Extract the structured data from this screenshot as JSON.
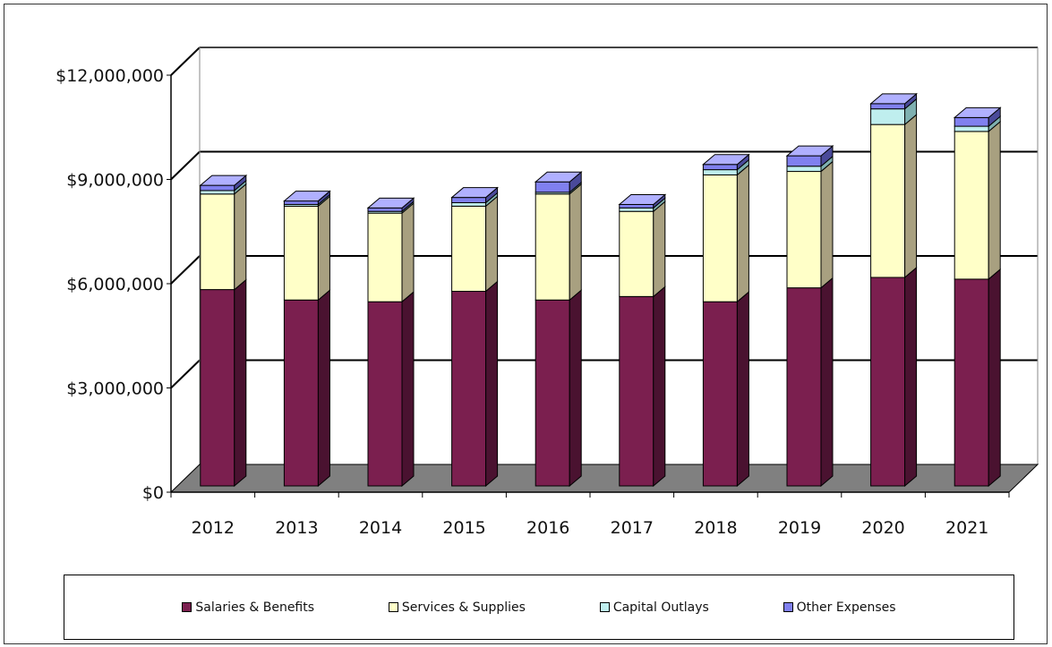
{
  "chart_data": {
    "type": "bar",
    "stacked": true,
    "three_d": true,
    "categories": [
      "2012",
      "2013",
      "2014",
      "2015",
      "2016",
      "2017",
      "2018",
      "2019",
      "2020",
      "2021"
    ],
    "series": [
      {
        "name": "Salaries & Benefits",
        "color": "#7b1f4f",
        "side_color": "#4a1230",
        "top_color": "#a04a74",
        "values": [
          5650000,
          5350000,
          5300000,
          5600000,
          5350000,
          5450000,
          5300000,
          5700000,
          6000000,
          5950000
        ]
      },
      {
        "name": "Services & Supplies",
        "color": "#ffffc8",
        "side_color": "#a8a080",
        "top_color": "#fffff0",
        "values": [
          2750000,
          2700000,
          2550000,
          2450000,
          3050000,
          2450000,
          3650000,
          3350000,
          4400000,
          4250000
        ]
      },
      {
        "name": "Capital Outlays",
        "color": "#bfeeee",
        "side_color": "#7fb0b0",
        "top_color": "#e0ffff",
        "values": [
          100000,
          50000,
          50000,
          100000,
          50000,
          100000,
          150000,
          150000,
          450000,
          150000
        ]
      },
      {
        "name": "Other Expenses",
        "color": "#8080ef",
        "side_color": "#4a4a9a",
        "top_color": "#b0b0ff",
        "values": [
          150000,
          100000,
          100000,
          150000,
          300000,
          100000,
          150000,
          300000,
          150000,
          250000
        ]
      }
    ],
    "y_ticks": [
      "$0",
      "$3,000,000",
      "$6,000,000",
      "$9,000,000",
      "$12,000,000"
    ],
    "ylim": [
      0,
      12000000
    ],
    "grid": true,
    "legend_position": "bottom",
    "floor_color": "#808080"
  }
}
